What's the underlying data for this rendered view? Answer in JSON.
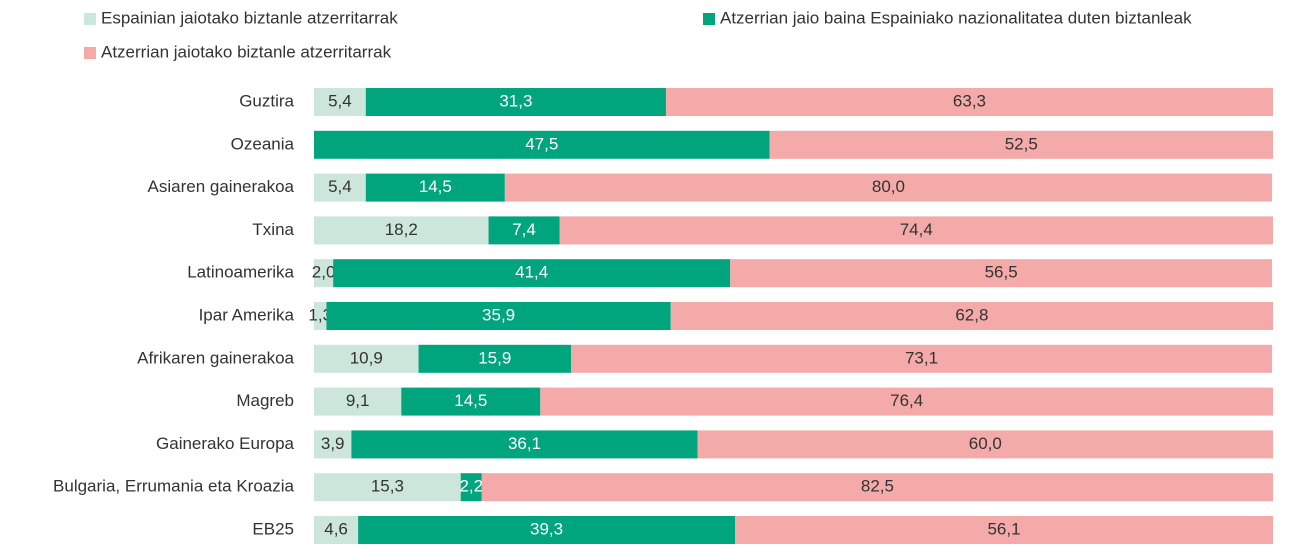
{
  "chart_data": {
    "type": "stacked-bar-horizontal",
    "categories": [
      "Guztira",
      "Ozeania",
      "Asiaren gainerakoa",
      "Txina",
      "Latinoamerika",
      "Ipar Amerika",
      "Afrikaren gainerakoa",
      "Magreb",
      "Gainerako Europa",
      "Bulgaria, Errumania eta Kroazia",
      "EB25"
    ],
    "xlim": [
      0,
      100
    ],
    "series": [
      {
        "name": "Espainian jaiotako biztanle atzerritarrak",
        "color": "#cde6dc",
        "label_color": "#333333",
        "values": [
          5.4,
          null,
          5.4,
          18.2,
          2.0,
          1.3,
          10.9,
          9.1,
          3.9,
          15.3,
          4.6
        ],
        "value_labels": [
          "5,4",
          null,
          "5,4",
          "18,2",
          "2,0",
          "1,3",
          "10,9",
          "9,1",
          "3,9",
          "15,3",
          "4,6"
        ]
      },
      {
        "name": "Atzerrian jaio baina Espainiako nazionalitatea duten biztanleak",
        "color": "#00a57e",
        "label_color": "#ffffff",
        "values": [
          31.3,
          47.5,
          14.5,
          7.4,
          41.4,
          35.9,
          15.9,
          14.5,
          36.1,
          2.2,
          39.3
        ],
        "value_labels": [
          "31,3",
          "47,5",
          "14,5",
          "7,4",
          "41,4",
          "35,9",
          "15,9",
          "14,5",
          "36,1",
          "2,2",
          "39,3"
        ]
      },
      {
        "name": "Atzerrian jaiotako biztanle atzerritarrak",
        "color": "#f4aaa8",
        "label_color": "#333333",
        "values": [
          63.3,
          52.5,
          80.0,
          74.4,
          56.5,
          62.8,
          73.1,
          76.4,
          60.0,
          82.5,
          56.1
        ],
        "value_labels": [
          "63,3",
          "52,5",
          "80,0",
          "74,4",
          "56,5",
          "62,8",
          "73,1",
          "76,4",
          "60,0",
          "82,5",
          "56,1"
        ]
      }
    ]
  }
}
